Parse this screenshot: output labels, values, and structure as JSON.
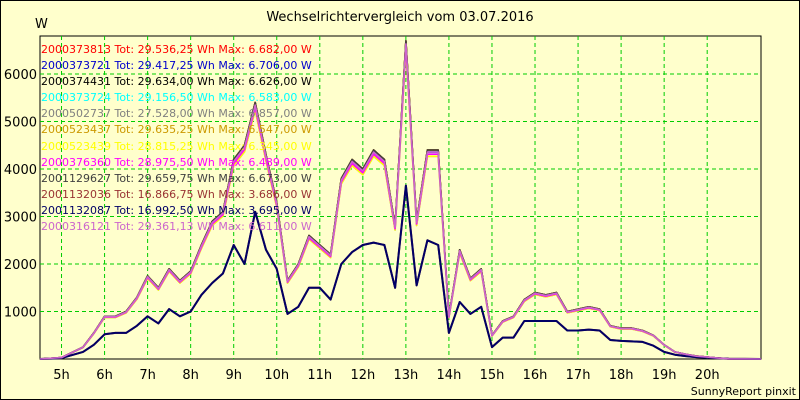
{
  "chart_data": {
    "type": "line",
    "title": "Wechselrichtervergleich vom 03.07.2016",
    "ylabel": "W",
    "footer": "SunnyReport pinxit",
    "x_ticks": [
      "5h",
      "6h",
      "7h",
      "8h",
      "9h",
      "10h",
      "11h",
      "12h",
      "13h",
      "14h",
      "15h",
      "16h",
      "17h",
      "18h",
      "19h",
      "20h"
    ],
    "y_ticks": [
      1000,
      2000,
      3000,
      4000,
      5000,
      6000
    ],
    "xlim": [
      4.5,
      21.25
    ],
    "ylim": [
      0,
      6800
    ],
    "grid": true,
    "legend_position": "top-left",
    "series": [
      {
        "name": "2000373813 Tot: 29.536,25 Wh Max: 6.682,00 W",
        "color": "#ff0000",
        "scale": 1.0
      },
      {
        "name": "2000373721 Tot: 29.417,25 Wh Max: 6.706,00 W",
        "color": "#0000cc",
        "scale": 0.99
      },
      {
        "name": "2000374431 Tot: 29.634,00 Wh Max: 6.626,00 W",
        "color": "#000000",
        "scale": 1.0
      },
      {
        "name": "2000373724 Tot: 29.156,50 Wh Max: 6.583,00 W",
        "color": "#00ffff",
        "scale": 0.98
      },
      {
        "name": "2000502737 Tot: 27.528,00 Wh Max: 6.857,00 W",
        "color": "#808080",
        "scale": 0.97
      },
      {
        "name": "2000523437 Tot: 29.635,25 Wh Max: 6.547,00 W",
        "color": "#cc9900",
        "scale": 1.0
      },
      {
        "name": "2000523439 Tot: 28.815,25 Wh Max: 6.345,00 W",
        "color": "#ffff00",
        "scale": 0.97
      },
      {
        "name": "2000376360 Tot: 28.975,50 Wh Max: 6.489,00 W",
        "color": "#ff00ff",
        "scale": 0.98
      },
      {
        "name": "2001129627 Tot: 29.659,75 Wh Max: 6.673,00 W",
        "color": "#404040",
        "scale": 1.0
      },
      {
        "name": "2001132036 Tot: 16.866,75 Wh Max: 3.686,00 W",
        "color": "#993333",
        "scale": 1.0
      },
      {
        "name": "2001132087 Tot: 16.992,50 Wh Max: 3.695,00 W",
        "color": "#000066",
        "scale": 1.0
      },
      {
        "name": "2000316121 Tot: 29.361,13 Wh Max: 6.611,00 W",
        "color": "#cc66cc",
        "scale": 0.99
      }
    ],
    "x": [
      4.5,
      5.0,
      5.5,
      5.75,
      6.0,
      6.25,
      6.5,
      6.75,
      7.0,
      7.25,
      7.5,
      7.75,
      8.0,
      8.25,
      8.5,
      8.75,
      9.0,
      9.25,
      9.5,
      9.75,
      10.0,
      10.25,
      10.5,
      10.75,
      11.0,
      11.25,
      11.5,
      11.75,
      12.0,
      12.25,
      12.5,
      12.75,
      13.0,
      13.25,
      13.5,
      13.75,
      14.0,
      14.25,
      14.5,
      14.75,
      15.0,
      15.25,
      15.5,
      15.75,
      16.0,
      16.25,
      16.5,
      16.75,
      17.0,
      17.25,
      17.5,
      17.75,
      18.0,
      18.25,
      18.5,
      18.75,
      19.0,
      19.25,
      19.5,
      19.75,
      20.0,
      20.25,
      20.5,
      21.25
    ],
    "full_profile": [
      0,
      30,
      250,
      550,
      900,
      900,
      1000,
      1300,
      1750,
      1500,
      1900,
      1650,
      1850,
      2400,
      2900,
      3100,
      4200,
      4500,
      5400,
      4300,
      3300,
      1650,
      2000,
      2600,
      2400,
      2200,
      3800,
      4200,
      4000,
      4400,
      4200,
      2800,
      6700,
      2900,
      4400,
      4400,
      900,
      2300,
      1700,
      1900,
      500,
      800,
      900,
      1250,
      1400,
      1350,
      1400,
      1000,
      1050,
      1100,
      1050,
      700,
      650,
      650,
      600,
      500,
      300,
      150,
      100,
      60,
      40,
      20,
      5,
      0
    ],
    "half_profile": [
      0,
      20,
      150,
      300,
      520,
      550,
      550,
      700,
      900,
      750,
      1050,
      900,
      1000,
      1350,
      1600,
      1800,
      2400,
      2000,
      3100,
      2300,
      1900,
      950,
      1100,
      1500,
      1500,
      1250,
      2000,
      2250,
      2400,
      2450,
      2400,
      1500,
      3650,
      1550,
      2500,
      2400,
      550,
      1200,
      950,
      1100,
      250,
      450,
      450,
      800,
      800,
      800,
      800,
      600,
      600,
      620,
      600,
      400,
      380,
      370,
      360,
      280,
      150,
      90,
      60,
      40,
      30,
      15,
      5,
      0
    ],
    "half_profile_series": [
      "2001132036 Tot: 16.866,75 Wh Max: 3.686,00 W",
      "2001132087 Tot: 16.992,50 Wh Max: 3.695,00 W"
    ]
  }
}
